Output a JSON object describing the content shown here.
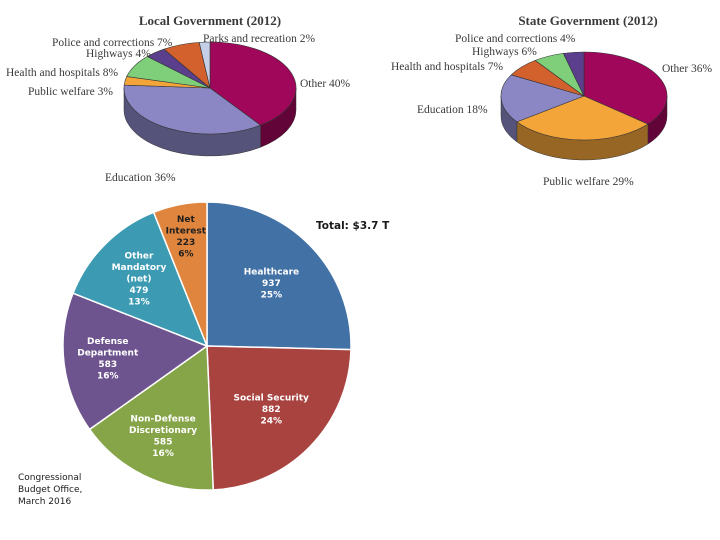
{
  "chart_data": [
    {
      "type": "pie",
      "title": "Local Government (2012)",
      "slices": [
        {
          "name": "Other",
          "value": 40,
          "label": "Other 40%",
          "color": "#a0075a"
        },
        {
          "name": "Education",
          "value": 36,
          "label": "Education 36%",
          "color": "#8b86c4"
        },
        {
          "name": "Public welfare",
          "value": 3,
          "label": "Public welfare 3%",
          "color": "#f4a53a"
        },
        {
          "name": "Health and hospitals",
          "value": 8,
          "label": "Health and hospitals 8%",
          "color": "#7fcf7a"
        },
        {
          "name": "Highways",
          "value": 4,
          "label": "Highways 4%",
          "color": "#5b3f8c"
        },
        {
          "name": "Police and corrections",
          "value": 7,
          "label": "Police and corrections 7%",
          "color": "#d2612e"
        },
        {
          "name": "Parks and recreation",
          "value": 2,
          "label": "Parks and recreation 2%",
          "color": "#c5cfe8"
        }
      ]
    },
    {
      "type": "pie",
      "title": "State Government (2012)",
      "slices": [
        {
          "name": "Other",
          "value": 36,
          "label": "Other 36%",
          "color": "#a0075a"
        },
        {
          "name": "Public welfare",
          "value": 29,
          "label": "Public welfare 29%",
          "color": "#f4a53a"
        },
        {
          "name": "Education",
          "value": 18,
          "label": "Education 18%",
          "color": "#8b86c4"
        },
        {
          "name": "Health and hospitals",
          "value": 7,
          "label": "Health and hospitals 7%",
          "color": "#d2612e"
        },
        {
          "name": "Highways",
          "value": 6,
          "label": "Highways 6%",
          "color": "#7fcf7a"
        },
        {
          "name": "Police and corrections",
          "value": 4,
          "label": "Police and corrections 4%",
          "color": "#5b3f8c"
        }
      ]
    },
    {
      "type": "pie",
      "title": "Total: $3.7 T",
      "slices": [
        {
          "name": "Healthcare",
          "value": 937,
          "pct": "25%",
          "lines": [
            "Healthcare",
            "937",
            "25%"
          ],
          "color": "#4271a6"
        },
        {
          "name": "Social Security",
          "value": 882,
          "pct": "24%",
          "lines": [
            "Social Security",
            "882",
            "24%"
          ],
          "color": "#a84340"
        },
        {
          "name": "Non-Defense Discretionary",
          "value": 585,
          "pct": "16%",
          "lines": [
            "Non-Defense",
            "Discretionary",
            "585",
            "16%"
          ],
          "color": "#86a448"
        },
        {
          "name": "Defense Department",
          "value": 583,
          "pct": "16%",
          "lines": [
            "Defense",
            "Department",
            "583",
            "16%"
          ],
          "color": "#6e548e"
        },
        {
          "name": "Other Mandatory (net)",
          "value": 479,
          "pct": "13%",
          "lines": [
            "Other",
            "Mandatory",
            "(net)",
            "479",
            "13%"
          ],
          "color": "#3c9bb3"
        },
        {
          "name": "Net Interest",
          "value": 223,
          "pct": "6%",
          "lines": [
            "Net",
            "Interest",
            "223",
            "6%"
          ],
          "color": "#e0853d"
        }
      ]
    }
  ],
  "source_note": "Congressional\nBudget Office,\nMarch 2016"
}
